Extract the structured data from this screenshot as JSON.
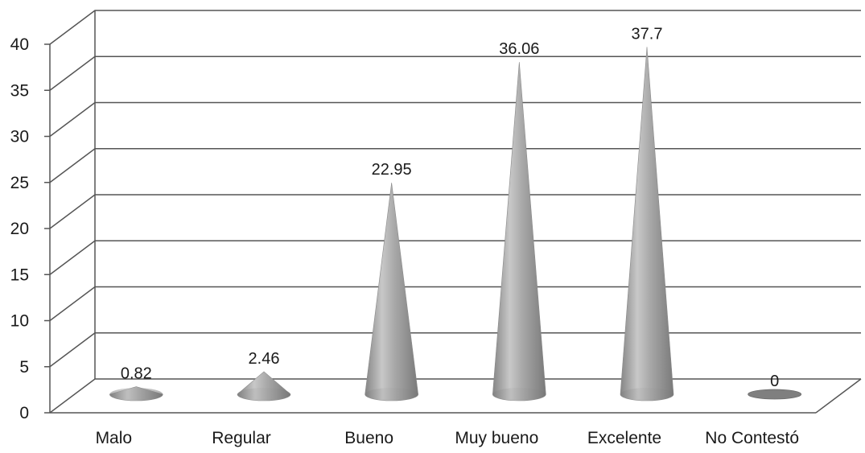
{
  "chart_data": {
    "type": "bar",
    "style": "3d-cone",
    "categories": [
      "Malo",
      "Regular",
      "Bueno",
      "Muy bueno",
      "Excelente",
      "No Contestó"
    ],
    "values": [
      0.82,
      2.46,
      22.95,
      36.06,
      37.7,
      0
    ],
    "value_labels": [
      "0.82",
      "2.46",
      "22.95",
      "36.06",
      "37.7",
      "0"
    ],
    "ylim": [
      0,
      40
    ],
    "yticks": [
      0,
      5,
      10,
      15,
      20,
      25,
      30,
      35,
      40
    ],
    "grid": true,
    "legend": "none",
    "title": "",
    "xlabel": "",
    "ylabel": "",
    "colors": {
      "cone": "#9a9a9a",
      "grid": "#555555",
      "flat_disc": "#7f7f7f"
    }
  }
}
